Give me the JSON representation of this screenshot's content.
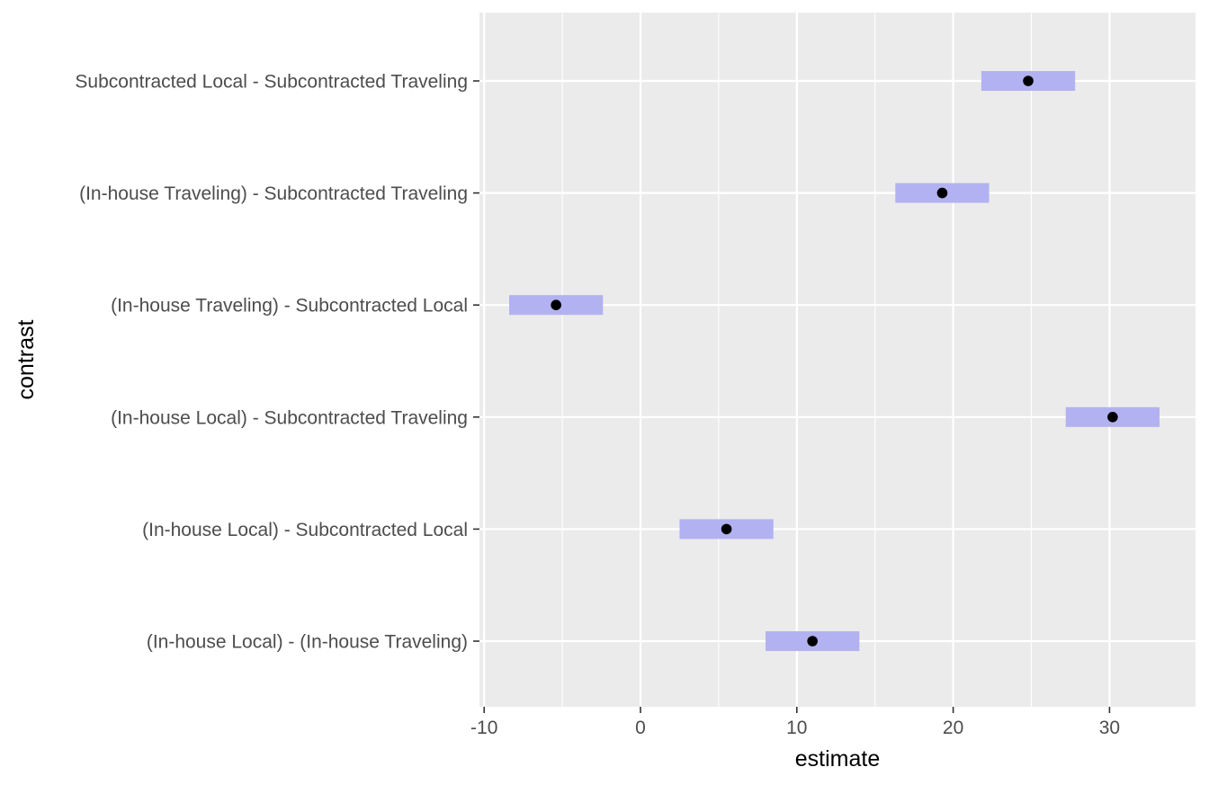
{
  "chart_data": {
    "type": "scatter",
    "subtype": "dot-with-interval",
    "title": "",
    "xlabel": "estimate",
    "ylabel": "contrast",
    "xlim": [
      -10.3,
      35.5
    ],
    "x_ticks": [
      -10,
      0,
      10,
      20,
      30
    ],
    "x_tick_labels": [
      "-10",
      "0",
      "10",
      "20",
      "30"
    ],
    "grid": true,
    "legend": "none",
    "colors": {
      "panel": "#ebebeb",
      "grid": "#ffffff",
      "interval": "#b2b2f2",
      "point": "#000000",
      "tick_text": "#4d4d4d",
      "axis_title": "#000000"
    },
    "categories": [
      "Subcontracted Local - Subcontracted Traveling",
      "(In-house Traveling) - Subcontracted Traveling",
      "(In-house Traveling) - Subcontracted Local",
      "(In-house Local) - Subcontracted Traveling",
      "(In-house Local) - Subcontracted Local",
      "(In-house Local) - (In-house Traveling)"
    ],
    "estimate": [
      24.8,
      19.3,
      -5.4,
      30.2,
      5.5,
      11.0
    ],
    "lower": [
      21.8,
      16.3,
      -8.4,
      27.2,
      2.5,
      8.0
    ],
    "upper": [
      27.8,
      22.3,
      -2.4,
      33.2,
      8.5,
      14.0
    ]
  }
}
